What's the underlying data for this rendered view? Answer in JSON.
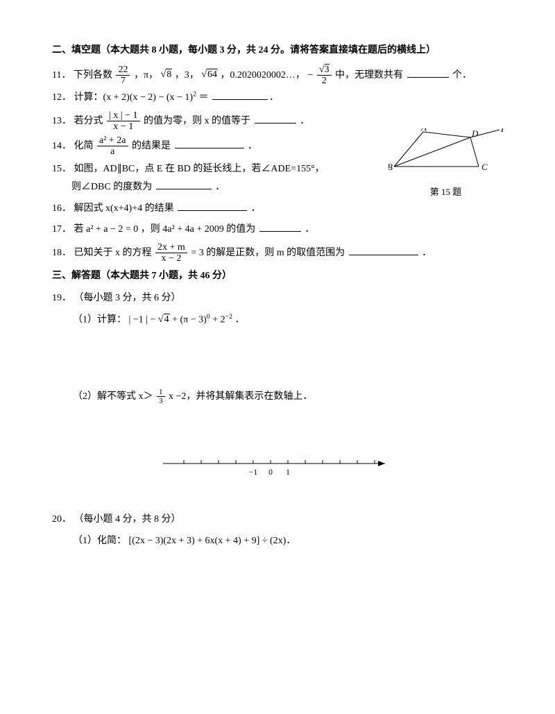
{
  "section2": {
    "header": "二、填空题（本大题共 8 小题，每小题 3 分，共 24 分。请将答案直接填在题后的横线上）",
    "q11": {
      "num": "11．",
      "t1": "下列各数",
      "frac1_num": "22",
      "frac1_den": "7",
      "t2": "，π，",
      "sqrt1": "8",
      "t3": "，3，",
      "sqrt2": "64",
      "t4": "，0.2020020002…，",
      "neg": "−",
      "frac2_num_sqrt": "3",
      "frac2_den": "2",
      "t5": " 中，无理数共有",
      "t6": "个．"
    },
    "q12": {
      "num": "12．",
      "t1": "计算：(x + 2)(x − 2) − (x − 1)",
      "sup": "2",
      "t2": " ＝"
    },
    "q13": {
      "num": "13．",
      "t1": "若分式",
      "frac_num": "| x | − 1",
      "frac_den": "x − 1",
      "t2": "的值为零，则 x 的值等于",
      "t3": "．"
    },
    "q14": {
      "num": "14．",
      "t1": "化简",
      "frac_num": "a² + 2a",
      "frac_den": "a",
      "t2": "的结果是",
      "t3": "．"
    },
    "q15": {
      "num": "15．",
      "t1": "如图，AD∥BC，点 E 在 BD 的延长线上，若∠ADE=155°，",
      "t2": "则∠DBC 的度数为",
      "t3": "．",
      "figure": {
        "labels": {
          "A": "A",
          "B": "B",
          "C": "C",
          "D": "D",
          "E": "E"
        },
        "caption": "第 15 题",
        "stroke": "#000000",
        "points": {
          "A": [
            50,
            5
          ],
          "D": [
            118,
            13
          ],
          "E": [
            160,
            2
          ],
          "B": [
            8,
            55
          ],
          "C": [
            130,
            55
          ]
        }
      }
    },
    "q16": {
      "num": "16．",
      "t1": "解因式 x(x+4)+4 的结果",
      "t2": "．"
    },
    "q17": {
      "num": "17．",
      "t1": "若 a² + a − 2 = 0 ，则 4a² + 4a + 2009 的值为",
      "t2": "．"
    },
    "q18": {
      "num": "18．",
      "t1": "已知关于 x 的方程",
      "frac_num": "2x + m",
      "frac_den": "x − 2",
      "t2": "= 3 的解是正数，则 m 的取值范围为",
      "t3": "．"
    }
  },
  "section3": {
    "header": "三、解答题（本大题共 7 小题，共 46 分）",
    "q19": {
      "num": "19．",
      "t1": "（每小题 3 分，共 6 分）",
      "p1": {
        "label": "（1）计算：",
        "expr_a": "| −1 | −",
        "sqrt": "4",
        "expr_b": " + (π − 3)",
        "sup0": "0",
        "expr_c": " + 2",
        "supn2": "−2",
        "period": "．"
      },
      "p2": {
        "label": "（2）解不等式 x＞",
        "frac_num": "1",
        "frac_den": "3",
        "t2": "x −2，并将其解集表示在数轴上．"
      }
    },
    "numberline": {
      "ticks": [
        "−1",
        "0",
        "1"
      ],
      "stroke": "#000000"
    },
    "q20": {
      "num": "20．",
      "t1": "（每小题 4 分，共 8 分）",
      "p1": {
        "label": "（1）化简：",
        "expr": "[(2x − 3)(2x + 3) + 6x(x + 4) + 9] ÷ (2x)．"
      }
    }
  }
}
